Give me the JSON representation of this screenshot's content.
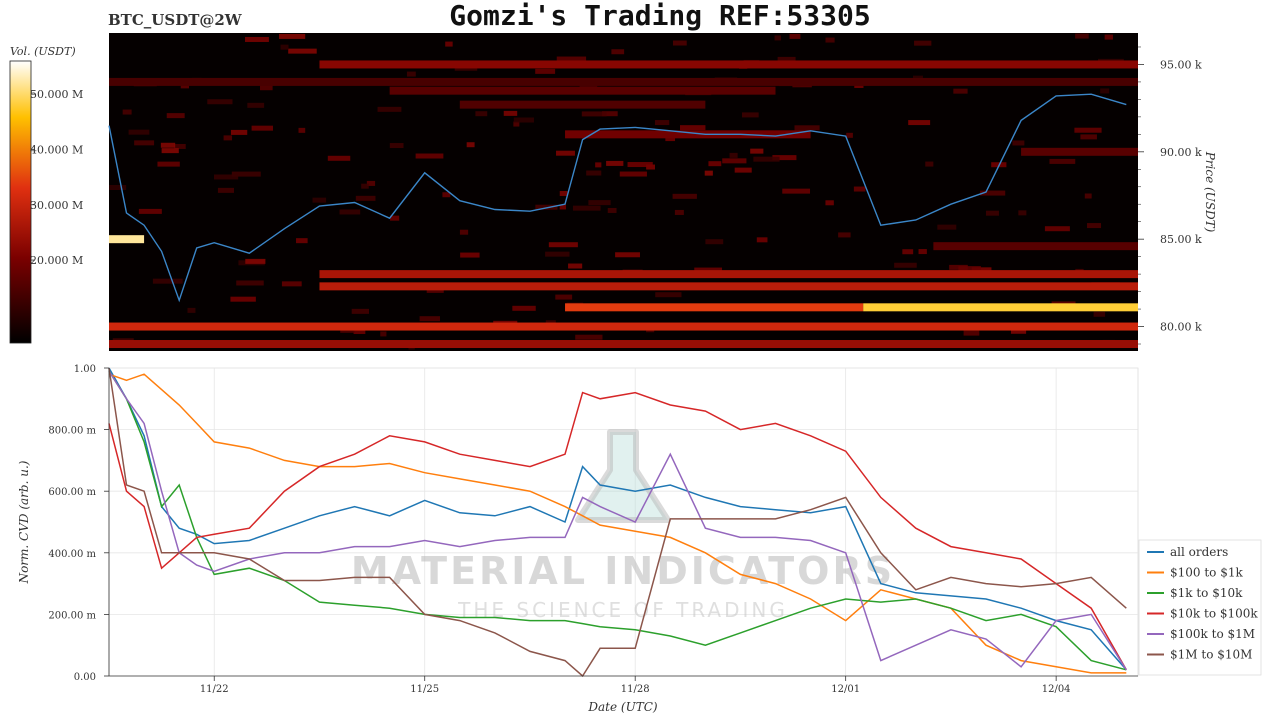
{
  "header": {
    "symbol": "BTC_USDT@2W",
    "title": "Gomzi's Trading REF:53305"
  },
  "watermark": {
    "line1": "MATERIAL INDICATORS",
    "line2": "THE SCIENCE OF TRADING"
  },
  "colorbar": {
    "label": "Vol. (USDT)",
    "ticks": [
      "50.000 M",
      "40.000 M",
      "30.000 M",
      "20.000 M"
    ],
    "tick_values": [
      50,
      40,
      30,
      20
    ],
    "range": [
      5,
      56
    ]
  },
  "colors": {
    "price_line": "#3b86c8",
    "all orders": "#1f77b4",
    "$100 to $1k": "#ff7f0e",
    "$1k to $10k": "#2ca02c",
    "$10k to $100k": "#d62728",
    "$100k to $1M": "#9467bd",
    "$1M to $10M": "#8c564b"
  },
  "chart_data": [
    {
      "type": "heatmap",
      "title": "BTC_USDT@2W",
      "ylabel": "Price (USDT)",
      "y_ticks": [
        "95.00 k",
        "90.00 k",
        "85.00 k",
        "80.00 k"
      ],
      "y_tick_values": [
        95000,
        90000,
        85000,
        80000
      ],
      "ylim": [
        78600,
        96800
      ],
      "xlim": [
        "11/20 12:00",
        "12/05 04:00"
      ],
      "price_series": {
        "name": "price",
        "x": [
          "11/20 12:00",
          "11/20 18:00",
          "11/21 00:00",
          "11/21 06:00",
          "11/21 12:00",
          "11/21 18:00",
          "11/22 00:00",
          "11/22 12:00",
          "11/23 00:00",
          "11/23 12:00",
          "11/24 00:00",
          "11/24 12:00",
          "11/25 00:00",
          "11/25 12:00",
          "11/26 00:00",
          "11/26 12:00",
          "11/27 00:00",
          "11/27 06:00",
          "11/27 12:00",
          "11/28 00:00",
          "11/28 12:00",
          "11/29 00:00",
          "11/29 12:00",
          "11/30 00:00",
          "11/30 12:00",
          "12/01 00:00",
          "12/01 12:00",
          "12/02 00:00",
          "12/02 12:00",
          "12/03 00:00",
          "12/03 12:00",
          "12/04 00:00",
          "12/04 12:00",
          "12/05 00:00"
        ],
        "y": [
          91500,
          86500,
          85800,
          84300,
          81500,
          84500,
          84800,
          84200,
          85600,
          86900,
          87100,
          86200,
          88800,
          87200,
          86700,
          86600,
          87000,
          90700,
          91300,
          91400,
          91200,
          91000,
          91000,
          90900,
          91200,
          90900,
          85800,
          86100,
          87000,
          87700,
          91800,
          93200,
          93300,
          92700
        ]
      },
      "bands": [
        {
          "price": 95000,
          "from": "11/23 12:00",
          "to": "12/05 04:00",
          "level": 22
        },
        {
          "price": 94000,
          "from": "11/20 12:00",
          "to": "12/05 04:00",
          "level": 14
        },
        {
          "price": 93500,
          "from": "11/24 12:00",
          "to": "11/30 00:00",
          "level": 16
        },
        {
          "price": 92700,
          "from": "11/25 12:00",
          "to": "11/29 00:00",
          "level": 15
        },
        {
          "price": 91000,
          "from": "11/27 00:00",
          "to": "11/30 12:00",
          "level": 19
        },
        {
          "price": 90000,
          "from": "12/03 12:00",
          "to": "12/05 04:00",
          "level": 16
        },
        {
          "price": 85000,
          "from": "11/20 12:00",
          "to": "11/21 00:00",
          "level": 52
        },
        {
          "price": 84600,
          "from": "12/02 06:00",
          "to": "12/05 04:00",
          "level": 16
        },
        {
          "price": 83000,
          "from": "11/23 12:00",
          "to": "12/05 04:00",
          "level": 26
        },
        {
          "price": 82300,
          "from": "11/23 12:00",
          "to": "12/05 04:00",
          "level": 28
        },
        {
          "price": 81100,
          "from": "11/27 00:00",
          "to": "12/01 06:00",
          "level": 34
        },
        {
          "price": 81100,
          "from": "12/01 06:00",
          "to": "12/05 04:00",
          "level": 48
        },
        {
          "price": 80000,
          "from": "11/20 12:00",
          "to": "12/05 04:00",
          "level": 31
        },
        {
          "price": 79000,
          "from": "11/20 12:00",
          "to": "12/05 04:00",
          "level": 24
        }
      ]
    },
    {
      "type": "line",
      "xlabel": "Date (UTC)",
      "ylabel": "Norm. CVD (arb. u.)",
      "x_ticks": [
        "11/22",
        "11/25",
        "11/28",
        "12/01",
        "12/04"
      ],
      "y_ticks": [
        "1.00",
        "800.00 m",
        "600.00 m",
        "400.00 m",
        "200.00 m",
        "0.00"
      ],
      "y_tick_values": [
        1.0,
        0.8,
        0.6,
        0.4,
        0.2,
        0.0
      ],
      "ylim": [
        0,
        1
      ],
      "xlim": [
        "11/20 12:00",
        "12/05 04:00"
      ],
      "legend": "right",
      "x": [
        "11/20 12:00",
        "11/20 18:00",
        "11/21 00:00",
        "11/21 06:00",
        "11/21 12:00",
        "11/21 18:00",
        "11/22 00:00",
        "11/22 12:00",
        "11/23 00:00",
        "11/23 12:00",
        "11/24 00:00",
        "11/24 12:00",
        "11/25 00:00",
        "11/25 12:00",
        "11/26 00:00",
        "11/26 12:00",
        "11/27 00:00",
        "11/27 06:00",
        "11/27 12:00",
        "11/28 00:00",
        "11/28 12:00",
        "11/29 00:00",
        "11/29 12:00",
        "11/30 00:00",
        "11/30 12:00",
        "12/01 00:00",
        "12/01 12:00",
        "12/02 00:00",
        "12/02 12:00",
        "12/03 00:00",
        "12/03 12:00",
        "12/04 00:00",
        "12/04 12:00",
        "12/05 00:00"
      ],
      "series": [
        {
          "name": "all orders",
          "values": [
            1.0,
            0.9,
            0.78,
            0.55,
            0.48,
            0.46,
            0.43,
            0.44,
            0.48,
            0.52,
            0.55,
            0.52,
            0.57,
            0.53,
            0.52,
            0.55,
            0.5,
            0.68,
            0.62,
            0.6,
            0.62,
            0.58,
            0.55,
            0.54,
            0.53,
            0.55,
            0.3,
            0.27,
            0.26,
            0.25,
            0.22,
            0.18,
            0.15,
            0.02
          ]
        },
        {
          "name": "$100 to $1k",
          "values": [
            0.98,
            0.96,
            0.98,
            0.93,
            0.88,
            0.82,
            0.76,
            0.74,
            0.7,
            0.68,
            0.68,
            0.69,
            0.66,
            0.64,
            0.62,
            0.6,
            0.55,
            0.52,
            0.49,
            0.47,
            0.45,
            0.4,
            0.33,
            0.3,
            0.25,
            0.18,
            0.28,
            0.25,
            0.22,
            0.1,
            0.05,
            0.03,
            0.01,
            0.01
          ]
        },
        {
          "name": "$1k to $10k",
          "values": [
            0.99,
            0.9,
            0.76,
            0.55,
            0.62,
            0.45,
            0.33,
            0.35,
            0.31,
            0.24,
            0.23,
            0.22,
            0.2,
            0.19,
            0.19,
            0.18,
            0.18,
            0.17,
            0.16,
            0.15,
            0.13,
            0.1,
            0.14,
            0.18,
            0.22,
            0.25,
            0.24,
            0.25,
            0.22,
            0.18,
            0.2,
            0.16,
            0.05,
            0.02
          ]
        },
        {
          "name": "$10k to $100k",
          "values": [
            0.82,
            0.6,
            0.55,
            0.35,
            0.4,
            0.45,
            0.46,
            0.48,
            0.6,
            0.68,
            0.72,
            0.78,
            0.76,
            0.72,
            0.7,
            0.68,
            0.72,
            0.92,
            0.9,
            0.92,
            0.88,
            0.86,
            0.8,
            0.82,
            0.78,
            0.73,
            0.58,
            0.48,
            0.42,
            0.4,
            0.38,
            0.3,
            0.22,
            0.02
          ]
        },
        {
          "name": "$100k to $1M",
          "values": [
            0.99,
            0.9,
            0.82,
            0.6,
            0.4,
            0.36,
            0.34,
            0.38,
            0.4,
            0.4,
            0.42,
            0.42,
            0.44,
            0.42,
            0.44,
            0.45,
            0.45,
            0.58,
            0.55,
            0.5,
            0.72,
            0.48,
            0.45,
            0.45,
            0.44,
            0.4,
            0.05,
            0.1,
            0.15,
            0.12,
            0.03,
            0.18,
            0.2,
            0.02
          ]
        },
        {
          "name": "$1M to $10M",
          "values": [
            1.0,
            0.62,
            0.6,
            0.4,
            0.4,
            0.4,
            0.4,
            0.38,
            0.31,
            0.31,
            0.32,
            0.32,
            0.2,
            0.18,
            0.14,
            0.08,
            0.05,
            0.0,
            0.09,
            0.09,
            0.51,
            0.51,
            0.51,
            0.51,
            0.54,
            0.58,
            0.4,
            0.28,
            0.32,
            0.3,
            0.29,
            0.3,
            0.32,
            0.22
          ]
        }
      ]
    }
  ]
}
